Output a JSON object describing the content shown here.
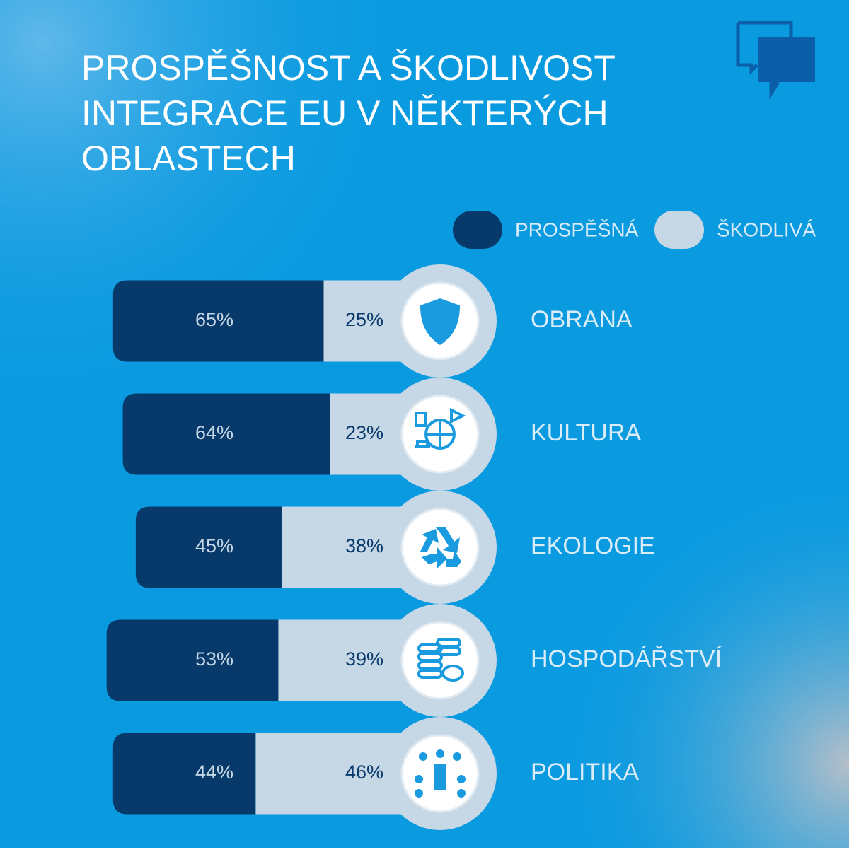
{
  "chart_data": {
    "type": "bar",
    "title": [
      "PROSPĚŠNOST A ŠKODLIVOST",
      "INTEGRACE EU V NĚKTERÝCH",
      "OBLASTECH"
    ],
    "categories": [
      "OBRANA",
      "KULTURA",
      "EKOLOGIE",
      "HOSPODÁŘSTVÍ",
      "POLITIKA"
    ],
    "series": [
      {
        "name": "PROSPĚŠNÁ",
        "color": "#073a6b",
        "values": [
          65,
          64,
          45,
          53,
          44
        ],
        "value_labels": [
          "65%",
          "64%",
          "45%",
          "53%",
          "44%"
        ]
      },
      {
        "name": "ŠKODLIVÁ",
        "color": "#c6d7e6",
        "values": [
          25,
          23,
          38,
          39,
          46
        ],
        "value_labels": [
          "25%",
          "23%",
          "38%",
          "39%",
          "46%"
        ]
      }
    ],
    "stacked": true
  }
}
